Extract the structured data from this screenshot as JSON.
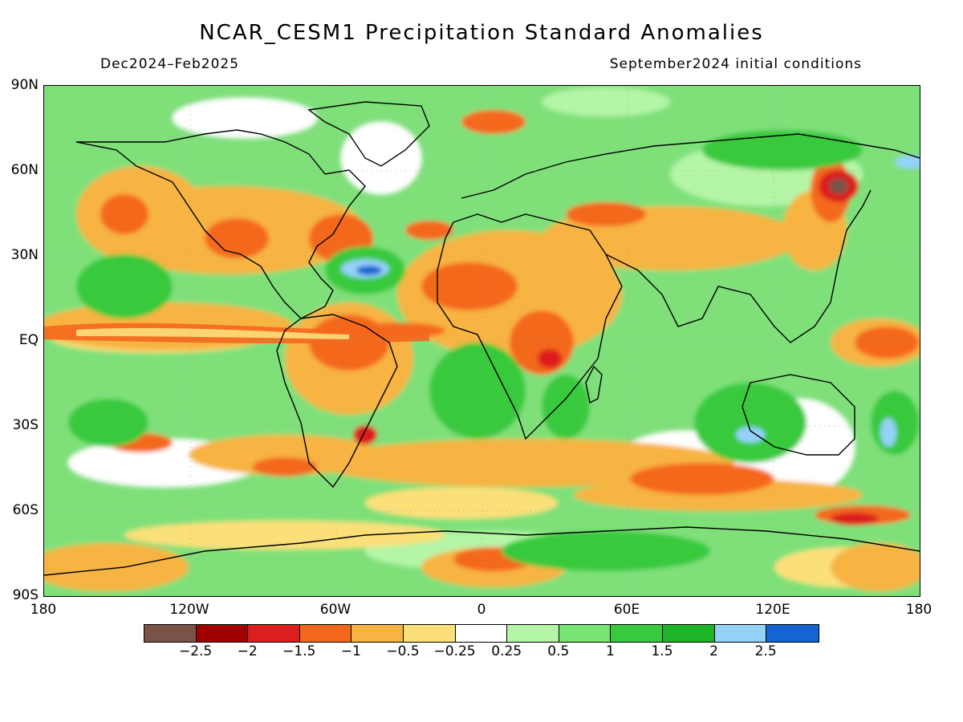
{
  "title": "NCAR_CESM1 Precipitation Standard Anomalies",
  "period": "Dec2024–Feb2025",
  "init": "September2024 initial conditions",
  "lat_labels": [
    "90N",
    "60N",
    "30N",
    "EQ",
    "30S",
    "60S",
    "90S"
  ],
  "lon_labels": [
    "180",
    "120W",
    "60W",
    "0",
    "60E",
    "120E",
    "180"
  ],
  "colorbar": {
    "colors": [
      "#7a5247",
      "#a00000",
      "#dc1e1e",
      "#f4681e",
      "#f7b443",
      "#fbe07a",
      "#ffffff",
      "#b4f5a6",
      "#78e471",
      "#37c93e",
      "#1fb426",
      "#94d2fa",
      "#1464d2"
    ],
    "labels": [
      "−2.5",
      "−2",
      "−1.5",
      "−1",
      "−0.5",
      "−0.25",
      "0.25",
      "0.5",
      "1",
      "1.5",
      "2",
      "2.5"
    ]
  },
  "map_style": {
    "ocean_base": "#7fe07a",
    "coastline": "#000000"
  }
}
